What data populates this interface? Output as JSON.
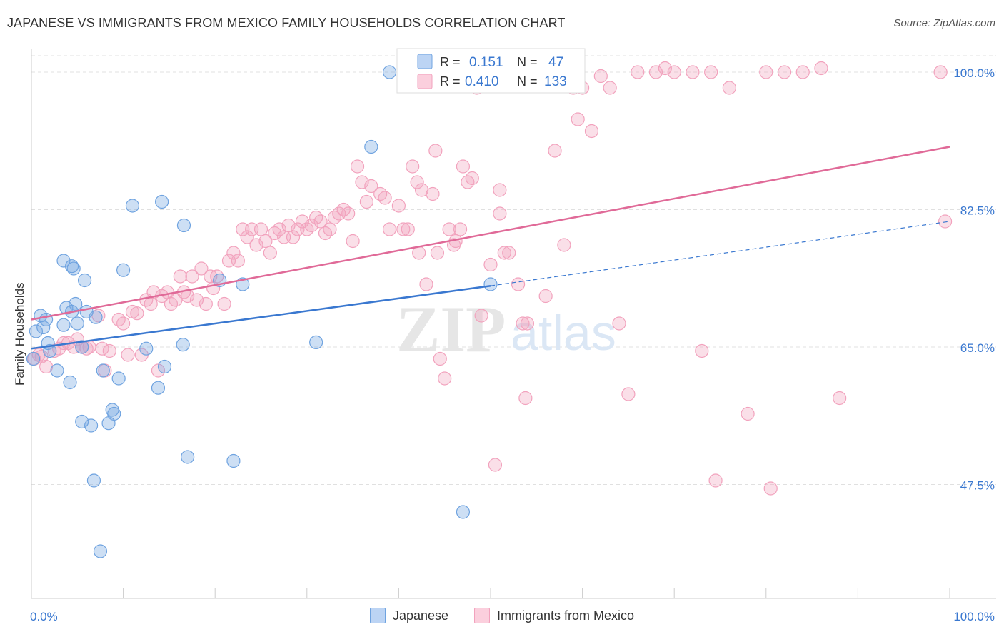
{
  "title": "JAPANESE VS IMMIGRANTS FROM MEXICO FAMILY HOUSEHOLDS CORRELATION CHART",
  "source": "Source: ZipAtlas.com",
  "watermark": {
    "zip": "ZIP",
    "atlas": "atlas"
  },
  "legend": {
    "rows": [
      {
        "r_label": "R =",
        "r_value": "0.151",
        "n_label": "N =",
        "n_value": "47"
      },
      {
        "r_label": "R =",
        "r_value": "0.410",
        "n_label": "N =",
        "n_value": "133"
      }
    ]
  },
  "bottom_legend": {
    "japanese": "Japanese",
    "mexico": "Immigrants from Mexico"
  },
  "chart_data": {
    "type": "scatter",
    "title": "JAPANESE VS IMMIGRANTS FROM MEXICO FAMILY HOUSEHOLDS CORRELATION CHART",
    "xlabel": "",
    "ylabel": "Family Households",
    "xlim": [
      0,
      100
    ],
    "ylim": [
      33,
      103
    ],
    "x_tick_labels": [
      "0.0%",
      "100.0%"
    ],
    "y_ticks": [
      47.5,
      65.0,
      82.5,
      100.0
    ],
    "y_tick_labels": [
      "47.5%",
      "65.0%",
      "82.5%",
      "100.0%"
    ],
    "grid": "horizontal dashed",
    "colors": {
      "japanese": "#6fa3e0",
      "mexico": "#f2a2bd",
      "japanese_line": "#3a78d0",
      "mexico_line": "#e06a98",
      "tick_text": "#3a78d0"
    },
    "series": [
      {
        "name": "Japanese",
        "points": [
          [
            0.2,
            63.5
          ],
          [
            0.5,
            67
          ],
          [
            1,
            69
          ],
          [
            1.3,
            67.5
          ],
          [
            1.6,
            68.5
          ],
          [
            1.8,
            65.5
          ],
          [
            2,
            64.5
          ],
          [
            2.8,
            62
          ],
          [
            3.5,
            67.8
          ],
          [
            3.5,
            76
          ],
          [
            3.8,
            70
          ],
          [
            4.2,
            60.5
          ],
          [
            4.4,
            75.3
          ],
          [
            4.4,
            69.5
          ],
          [
            4.6,
            75
          ],
          [
            4.8,
            70.5
          ],
          [
            5,
            68
          ],
          [
            5.5,
            65
          ],
          [
            5.5,
            55.5
          ],
          [
            5.8,
            73.5
          ],
          [
            6,
            69.5
          ],
          [
            6.5,
            55
          ],
          [
            6.8,
            48
          ],
          [
            7,
            68.8
          ],
          [
            7.5,
            39
          ],
          [
            7.8,
            62
          ],
          [
            8.4,
            55.3
          ],
          [
            8.8,
            57
          ],
          [
            9,
            56.5
          ],
          [
            9.5,
            61
          ],
          [
            10,
            74.8
          ],
          [
            11,
            83
          ],
          [
            12.5,
            64.8
          ],
          [
            13.8,
            59.8
          ],
          [
            14.2,
            83.5
          ],
          [
            14.5,
            62.5
          ],
          [
            16.5,
            65.3
          ],
          [
            16.6,
            80.5
          ],
          [
            17,
            51
          ],
          [
            20.5,
            73.5
          ],
          [
            22,
            50.5
          ],
          [
            23,
            73
          ],
          [
            31,
            65.6
          ],
          [
            37,
            90.5
          ],
          [
            39,
            100
          ],
          [
            47,
            44
          ],
          [
            50,
            73
          ]
        ],
        "trend": {
          "x0": 0,
          "y0": 64.8,
          "x1": 50,
          "y1": 72.8,
          "dashed_to": 100,
          "dashed_y": 81
        }
      },
      {
        "name": "Immigrants from Mexico",
        "points": [
          [
            0.3,
            63.5
          ],
          [
            0.8,
            64
          ],
          [
            1.1,
            63.8
          ],
          [
            1.6,
            62.5
          ],
          [
            2.5,
            64.5
          ],
          [
            3,
            64.8
          ],
          [
            3.5,
            65.5
          ],
          [
            4,
            65.5
          ],
          [
            4.6,
            65
          ],
          [
            5,
            66
          ],
          [
            5.5,
            65
          ],
          [
            6,
            64.8
          ],
          [
            6.3,
            65
          ],
          [
            7.3,
            69
          ],
          [
            7.7,
            64.8
          ],
          [
            8,
            62
          ],
          [
            8.5,
            64.5
          ],
          [
            9.5,
            68.5
          ],
          [
            10,
            68
          ],
          [
            10.5,
            64
          ],
          [
            11,
            69.5
          ],
          [
            11.5,
            69.3
          ],
          [
            12,
            64
          ],
          [
            12.5,
            71
          ],
          [
            13,
            70.5
          ],
          [
            13.3,
            72
          ],
          [
            13.8,
            62
          ],
          [
            14.2,
            71.5
          ],
          [
            14.8,
            72
          ],
          [
            15.2,
            70.5
          ],
          [
            15.7,
            71
          ],
          [
            16.2,
            74
          ],
          [
            16.6,
            72
          ],
          [
            17,
            71.5
          ],
          [
            17.5,
            74
          ],
          [
            18,
            71
          ],
          [
            18.5,
            75
          ],
          [
            19,
            70.5
          ],
          [
            19.5,
            74
          ],
          [
            19.8,
            72.5
          ],
          [
            20.2,
            74
          ],
          [
            21,
            70.5
          ],
          [
            21.5,
            76
          ],
          [
            22,
            77
          ],
          [
            22.5,
            76
          ],
          [
            23,
            80
          ],
          [
            23.5,
            79
          ],
          [
            24,
            80
          ],
          [
            24.5,
            78
          ],
          [
            25,
            80
          ],
          [
            25.5,
            78.5
          ],
          [
            26,
            77
          ],
          [
            26.5,
            79.5
          ],
          [
            27,
            80
          ],
          [
            27.5,
            79
          ],
          [
            28,
            80.5
          ],
          [
            28.5,
            79
          ],
          [
            29,
            80
          ],
          [
            29.5,
            81
          ],
          [
            30,
            80
          ],
          [
            30.5,
            80.5
          ],
          [
            31,
            81.5
          ],
          [
            31.5,
            81
          ],
          [
            32,
            79.5
          ],
          [
            32.5,
            80
          ],
          [
            33,
            81.5
          ],
          [
            33.5,
            82
          ],
          [
            34,
            82.5
          ],
          [
            34.5,
            82
          ],
          [
            35,
            78.5
          ],
          [
            35.5,
            88
          ],
          [
            36,
            86
          ],
          [
            36.5,
            83.5
          ],
          [
            37,
            85.5
          ],
          [
            38,
            84.5
          ],
          [
            38.5,
            84
          ],
          [
            39,
            80
          ],
          [
            40,
            83
          ],
          [
            40.5,
            80
          ],
          [
            41,
            80
          ],
          [
            41.5,
            88
          ],
          [
            42,
            86
          ],
          [
            42.2,
            77
          ],
          [
            42.5,
            85
          ],
          [
            43,
            73
          ],
          [
            43.7,
            84.5
          ],
          [
            44,
            90
          ],
          [
            44.2,
            77
          ],
          [
            44.5,
            63.5
          ],
          [
            45,
            61
          ],
          [
            45.5,
            80
          ],
          [
            46,
            78
          ],
          [
            46.2,
            78.5
          ],
          [
            46.7,
            80
          ],
          [
            47,
            88
          ],
          [
            47.5,
            86
          ],
          [
            48,
            86.5
          ],
          [
            48.5,
            98
          ],
          [
            49,
            69
          ],
          [
            50,
            75.5
          ],
          [
            50.5,
            50
          ],
          [
            51,
            85
          ],
          [
            51,
            82
          ],
          [
            51.5,
            77
          ],
          [
            52,
            77
          ],
          [
            53,
            73
          ],
          [
            53.5,
            68
          ],
          [
            53.8,
            58.5
          ],
          [
            54,
            68
          ],
          [
            56,
            71.5
          ],
          [
            57,
            90
          ],
          [
            58,
            78
          ],
          [
            59,
            98
          ],
          [
            59.5,
            94
          ],
          [
            60,
            98
          ],
          [
            61,
            92.5
          ],
          [
            62,
            99.5
          ],
          [
            63,
            98
          ],
          [
            64,
            68
          ],
          [
            65,
            59
          ],
          [
            66,
            100
          ],
          [
            68,
            100
          ],
          [
            69,
            100.5
          ],
          [
            70,
            100
          ],
          [
            72,
            100
          ],
          [
            73,
            64.5
          ],
          [
            74,
            100
          ],
          [
            74.5,
            48
          ],
          [
            76,
            98
          ],
          [
            78,
            56.5
          ],
          [
            80,
            100
          ],
          [
            80.5,
            47
          ],
          [
            82,
            100
          ],
          [
            84,
            100
          ],
          [
            86,
            100.5
          ],
          [
            88,
            58.5
          ],
          [
            99,
            100
          ],
          [
            99.5,
            81
          ]
        ],
        "trend": {
          "x0": 0,
          "y0": 68.5,
          "x1": 100,
          "y1": 90.5
        }
      }
    ]
  }
}
